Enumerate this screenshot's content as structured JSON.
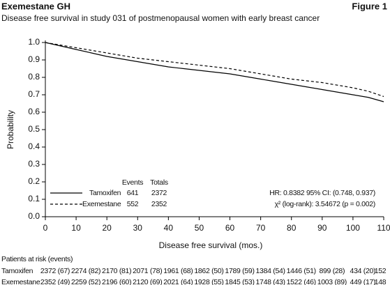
{
  "chart_data": {
    "type": "line",
    "header": "Exemestane GH",
    "figure_label": "Figure 1",
    "title": "Disease free survival in study 031 of postmenopausal women with early breast cancer",
    "x_label": "Disease free survival (mos.)",
    "y_label": "Probability",
    "x": [
      0,
      5,
      10,
      15,
      20,
      25,
      30,
      35,
      40,
      45,
      50,
      55,
      60,
      65,
      70,
      75,
      80,
      85,
      90,
      95,
      100,
      105,
      110
    ],
    "series": [
      {
        "name": "Tamoxifen",
        "color": "#000000",
        "style": "solid",
        "events": "641",
        "totals": "2372",
        "values": [
          1.0,
          0.98,
          0.96,
          0.94,
          0.92,
          0.905,
          0.89,
          0.875,
          0.86,
          0.85,
          0.84,
          0.83,
          0.82,
          0.805,
          0.79,
          0.775,
          0.76,
          0.745,
          0.73,
          0.715,
          0.7,
          0.685,
          0.66
        ]
      },
      {
        "name": "Exemestane",
        "color": "#000000",
        "style": "dashed",
        "events": "552",
        "totals": "2352",
        "values": [
          1.0,
          0.985,
          0.97,
          0.955,
          0.94,
          0.925,
          0.91,
          0.9,
          0.89,
          0.88,
          0.87,
          0.86,
          0.85,
          0.835,
          0.82,
          0.805,
          0.79,
          0.78,
          0.77,
          0.755,
          0.74,
          0.72,
          0.69
        ]
      }
    ],
    "legend_headers": [
      "Events",
      "Totals"
    ],
    "annotations": [
      "HR: 0.8382   95% CI: (0.748, 0.937)",
      "χ² (log-rank): 3.54672   (p = 0.002)"
    ],
    "xlim": [
      0,
      110
    ],
    "xticks": [
      0,
      10,
      20,
      30,
      40,
      50,
      60,
      70,
      80,
      90,
      100,
      110
    ],
    "ylim": [
      0,
      1
    ],
    "yticks": [
      0,
      {
        "value": 0.1,
        "label": "0.1"
      },
      {
        "value": 0.2,
        "label": "0.2"
      },
      {
        "value": 0.3,
        "label": "0.3"
      },
      {
        "value": 0.4,
        "label": "0.4"
      },
      {
        "value": 0.5,
        "label": "0.5"
      },
      {
        "value": 0.6,
        "label": "0.6"
      },
      {
        "value": 0.7,
        "label": "0.7"
      },
      {
        "value": 0.8,
        "label": "0.8"
      },
      {
        "value": 0.9,
        "label": "0.9"
      },
      {
        "value": 1,
        "label": "1.0"
      }
    ],
    "yticks_zero_label": "0.0",
    "risk_table": {
      "title": "Patients at risk (events)",
      "rows": [
        {
          "name": "Tamoxifen",
          "cells": [
            "2372 (67)",
            "2274 (82)",
            "2170 (81)",
            "2071 (78)",
            "1961 (68)",
            "1862 (50)",
            "1789 (59)",
            "1384 (54)",
            "1446 (51)",
            "899 (28)",
            "434 (20)",
            "152"
          ]
        },
        {
          "name": "Exemestane",
          "cells": [
            "2352 (49)",
            "2259 (52)",
            "2196 (60)",
            "2120 (69)",
            "2021 (64)",
            "1928 (55)",
            "1845 (53)",
            "1748 (43)",
            "1522 (46)",
            "1003 (89)",
            "449 (17)",
            "148"
          ]
        }
      ]
    }
  }
}
